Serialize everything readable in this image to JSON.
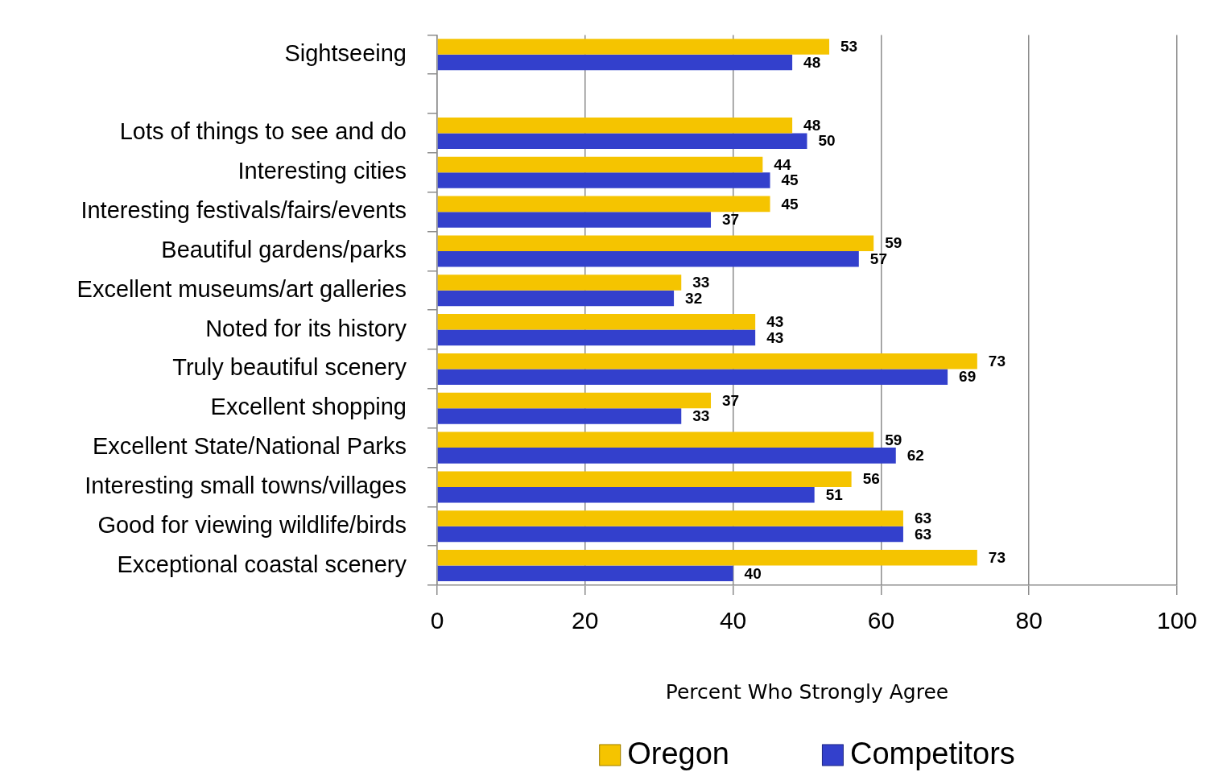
{
  "chart_data": {
    "type": "bar",
    "orientation": "horizontal",
    "categories": [
      "Sightseeing",
      null,
      "Lots of things to see and do",
      "Interesting cities",
      "Interesting festivals/fairs/events",
      "Beautiful gardens/parks",
      "Excellent museums/art galleries",
      "Noted for its history",
      "Truly beautiful scenery",
      "Excellent shopping",
      "Excellent State/National Parks",
      "Interesting small towns/villages",
      "Good for viewing wildlife/birds",
      "Exceptional coastal scenery"
    ],
    "series": [
      {
        "name": "Oregon",
        "color": "#f5c400",
        "values": [
          53,
          null,
          48,
          44,
          45,
          59,
          33,
          43,
          73,
          37,
          59,
          56,
          63,
          73
        ]
      },
      {
        "name": "Competitors",
        "color": "#3340cc",
        "values": [
          48,
          null,
          50,
          45,
          37,
          57,
          32,
          43,
          69,
          33,
          62,
          51,
          63,
          40
        ]
      }
    ],
    "xlabel": "Percent Who Strongly Agree",
    "xlim": [
      0,
      100
    ],
    "xticks": [
      0,
      20,
      40,
      60,
      80,
      100
    ],
    "grid": "x",
    "legend": "bottom",
    "data_labels": true
  }
}
